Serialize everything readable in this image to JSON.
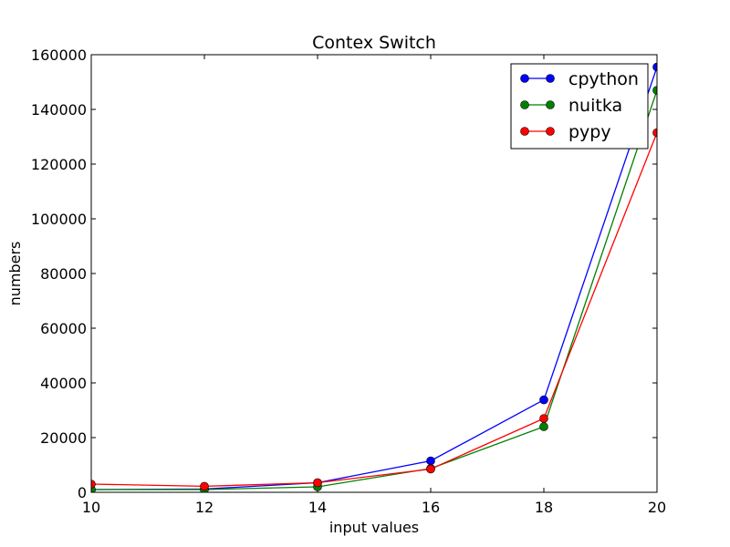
{
  "chart_data": {
    "type": "line",
    "title": "Contex Switch",
    "xlabel": "input values",
    "ylabel": "numbers",
    "xlim": [
      10,
      20
    ],
    "ylim": [
      0,
      160000
    ],
    "x": [
      10,
      12,
      14,
      16,
      18,
      20
    ],
    "xticks": [
      10,
      12,
      14,
      16,
      18,
      20
    ],
    "yticks": [
      0,
      20000,
      40000,
      60000,
      80000,
      100000,
      120000,
      140000,
      160000
    ],
    "legend_position": "top-right",
    "grid": false,
    "series": [
      {
        "name": "cpython",
        "color": "#0000ff",
        "values": [
          1000,
          1200,
          3500,
          11500,
          33800,
          155500
        ]
      },
      {
        "name": "nuitka",
        "color": "#008000",
        "values": [
          1000,
          1000,
          2000,
          8700,
          24000,
          147000
        ]
      },
      {
        "name": "pypy",
        "color": "#ff0000",
        "values": [
          3000,
          2200,
          3500,
          8500,
          27000,
          131500
        ]
      }
    ]
  }
}
